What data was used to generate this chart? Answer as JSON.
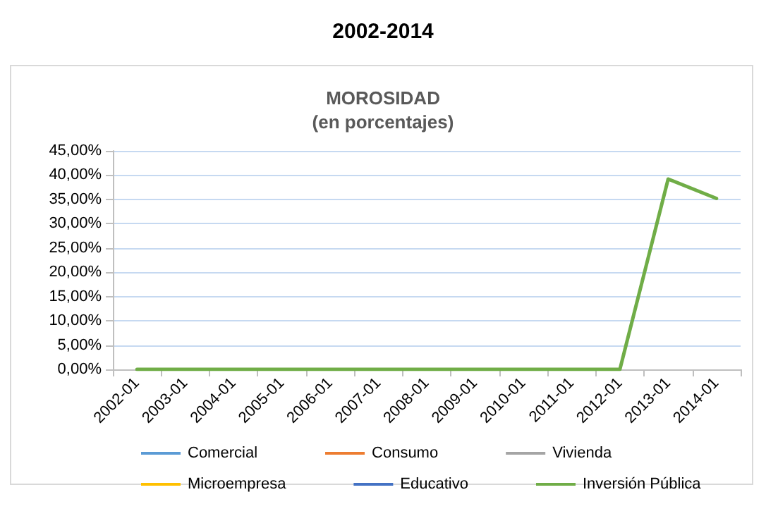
{
  "chart_data": {
    "type": "line",
    "title": "2002-2014",
    "subtitle": "MOROSIDAD\n(en porcentajes)",
    "categories": [
      "2002-01",
      "2003-01",
      "2004-01",
      "2005-01",
      "2006-01",
      "2007-01",
      "2008-01",
      "2009-01",
      "2010-01",
      "2011-01",
      "2012-01",
      "2013-01",
      "2014-01"
    ],
    "series": [
      {
        "name": "Comercial",
        "color": "#5b9bd5",
        "values": [
          null,
          null,
          null,
          null,
          null,
          null,
          null,
          null,
          null,
          null,
          null,
          null,
          null
        ]
      },
      {
        "name": "Consumo",
        "color": "#ed7d31",
        "values": [
          null,
          null,
          null,
          null,
          null,
          null,
          null,
          null,
          null,
          null,
          null,
          null,
          null
        ]
      },
      {
        "name": "Vivienda",
        "color": "#a5a5a5",
        "values": [
          null,
          null,
          null,
          null,
          null,
          null,
          null,
          null,
          null,
          null,
          null,
          null,
          null
        ]
      },
      {
        "name": "Microempresa",
        "color": "#ffc000",
        "values": [
          null,
          null,
          null,
          null,
          null,
          null,
          null,
          null,
          null,
          null,
          null,
          null,
          null
        ]
      },
      {
        "name": "Educativo",
        "color": "#4472c4",
        "values": [
          null,
          null,
          null,
          null,
          null,
          null,
          null,
          null,
          null,
          null,
          null,
          null,
          null
        ]
      },
      {
        "name": "Inversión Pública",
        "color": "#70ad47",
        "values": [
          0,
          0,
          0,
          0,
          0,
          0,
          0,
          0,
          0,
          0,
          0,
          39.2,
          35.2
        ]
      }
    ],
    "ylim": [
      0,
      45
    ],
    "yticks": [
      {
        "value": 0,
        "label": "0,00%"
      },
      {
        "value": 5,
        "label": "5,00%"
      },
      {
        "value": 10,
        "label": "10,00%"
      },
      {
        "value": 15,
        "label": "15,00%"
      },
      {
        "value": 20,
        "label": "20,00%"
      },
      {
        "value": 25,
        "label": "25,00%"
      },
      {
        "value": 30,
        "label": "30,00%"
      },
      {
        "value": 35,
        "label": "35,00%"
      },
      {
        "value": 40,
        "label": "40,00%"
      },
      {
        "value": 45,
        "label": "45,00%"
      }
    ],
    "grid": "y",
    "legend": "bottom",
    "marker": "none",
    "line_style": "solid"
  }
}
